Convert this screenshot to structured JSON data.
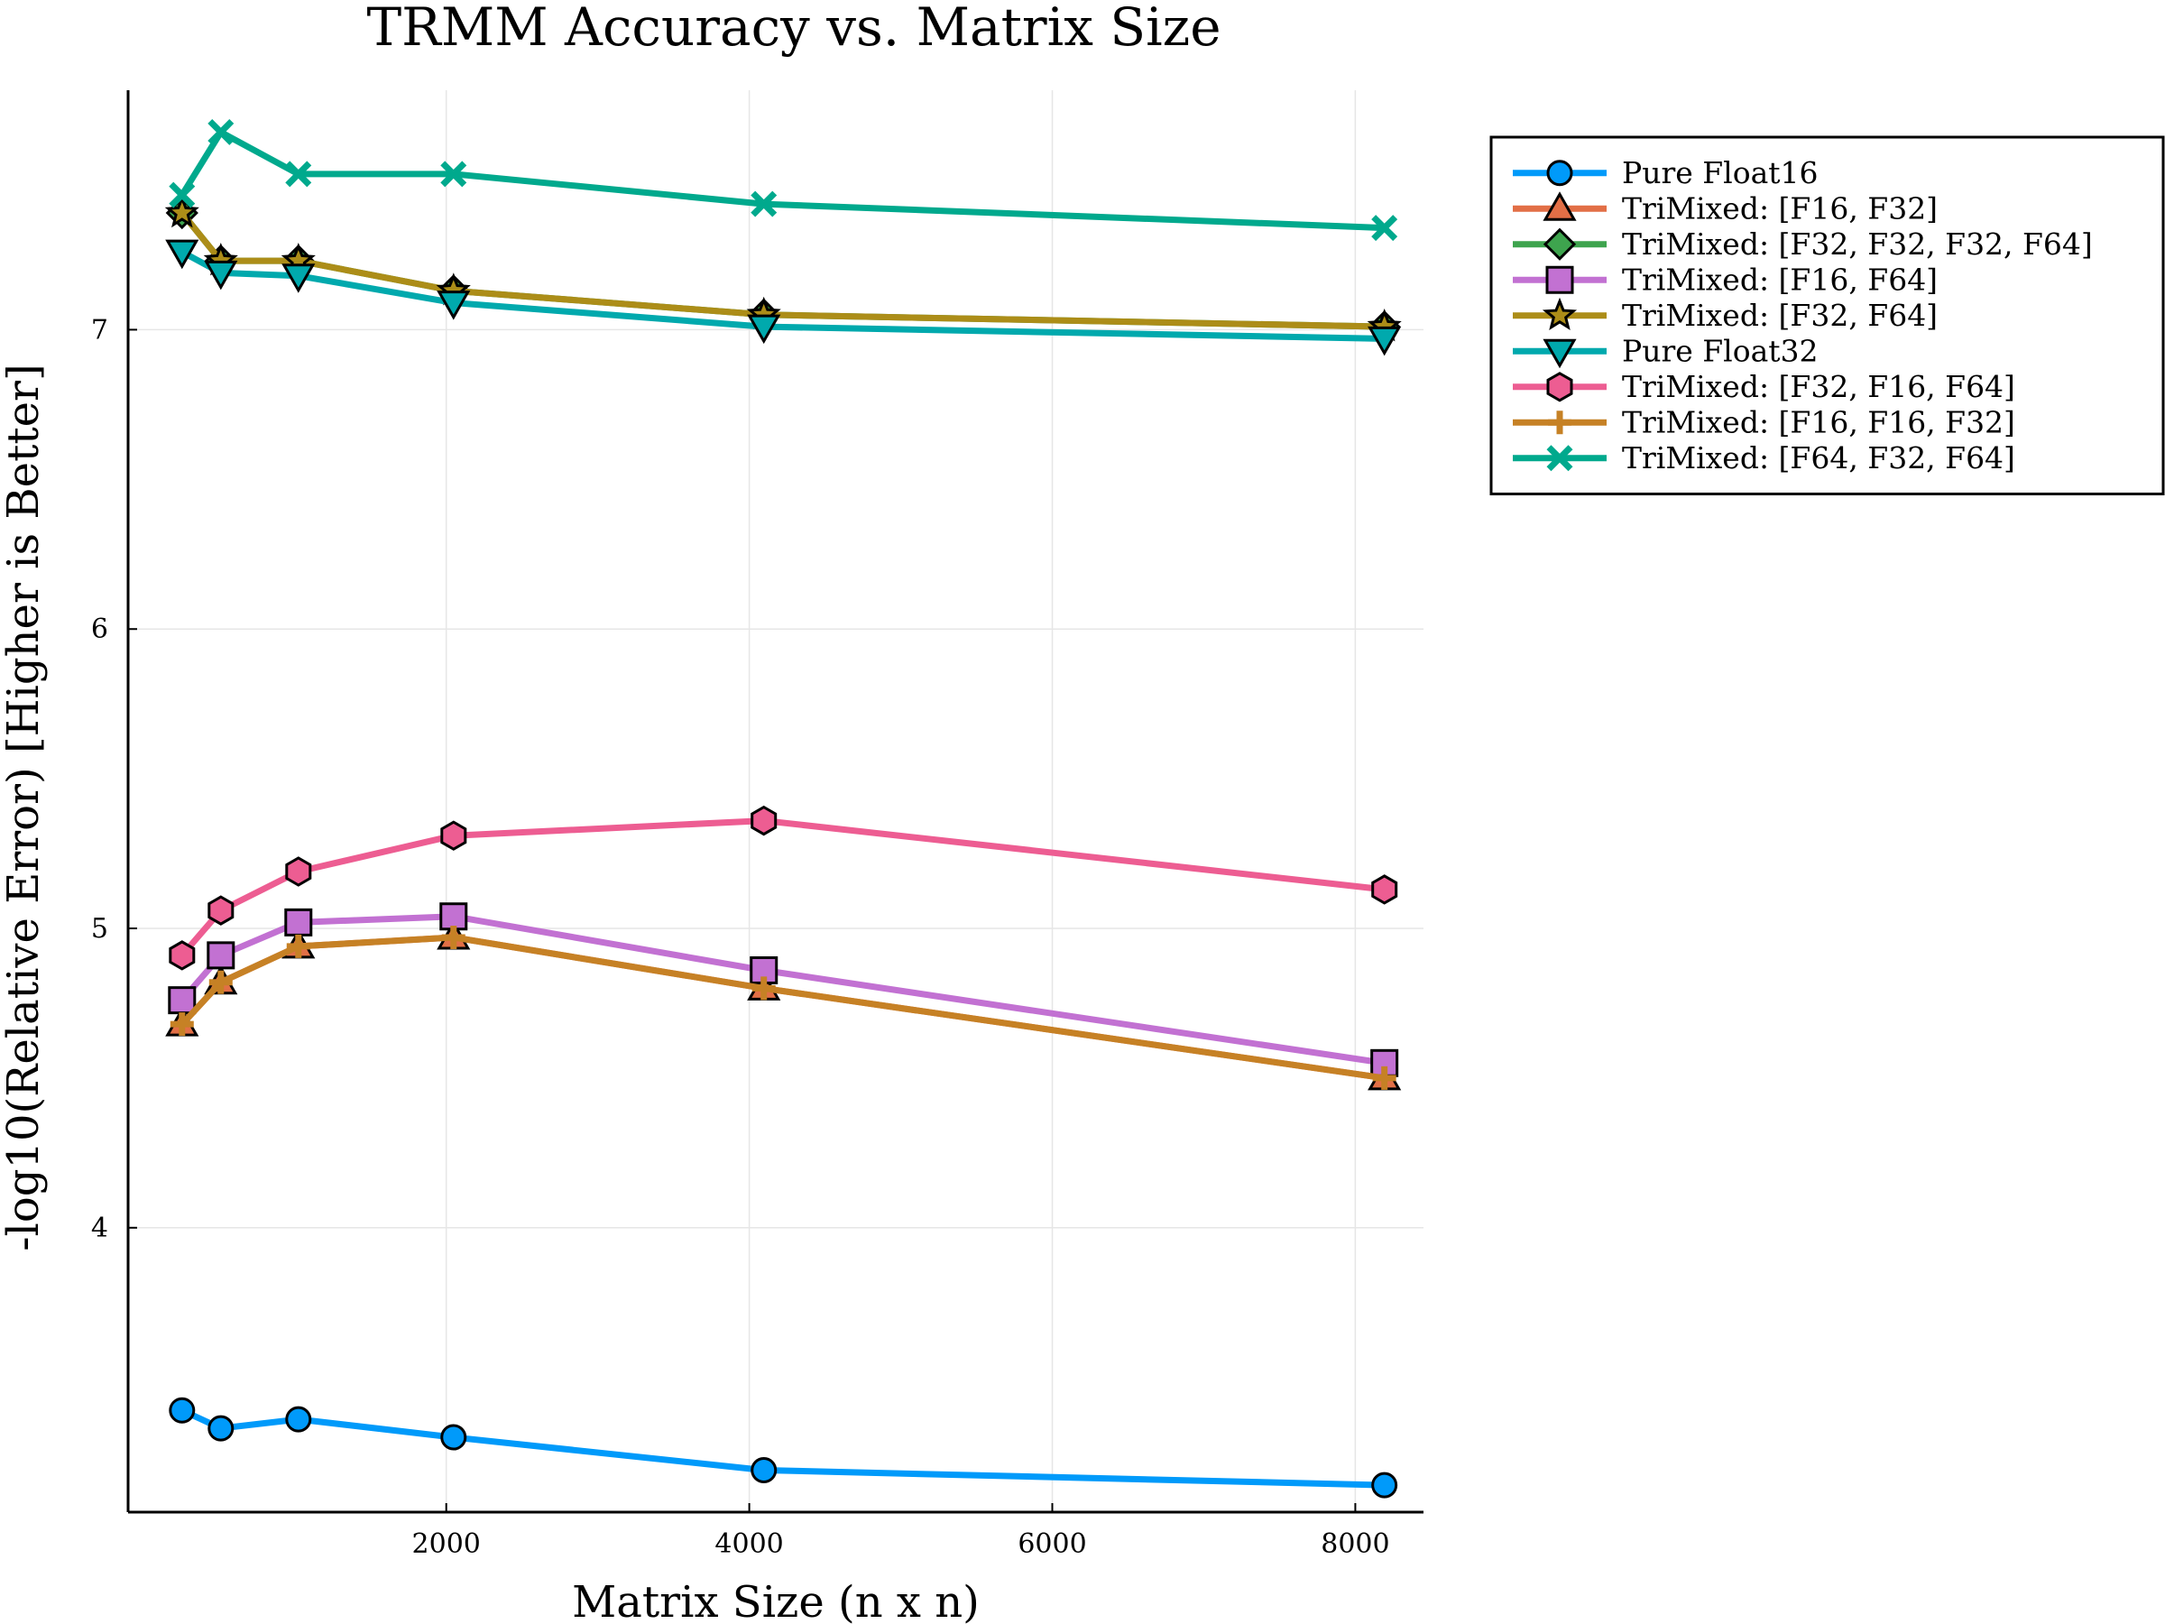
{
  "chart_data": {
    "type": "line",
    "title": "TRMM Accuracy vs. Matrix Size",
    "xlabel": "Matrix Size (n x n)",
    "ylabel": "-log10(Relative Error) [Higher is Better]",
    "xlim": [
      -100,
      8450
    ],
    "ylim": [
      3.05,
      7.8
    ],
    "xticks": [
      2000,
      4000,
      6000,
      8000
    ],
    "xtick_labels": [
      "2000",
      "4000",
      "6000",
      "8000"
    ],
    "yticks": [
      4,
      5,
      6,
      7
    ],
    "ytick_labels": [
      "4",
      "5",
      "6",
      "7"
    ],
    "grid": true,
    "legend_position": "top-right outside",
    "x": [
      256,
      512,
      1024,
      2048,
      4096,
      8192
    ],
    "series": [
      {
        "name": "Pure Float16",
        "color": "#009AFA",
        "marker": "circle",
        "values": [
          3.39,
          3.33,
          3.36,
          3.3,
          3.19,
          3.14
        ]
      },
      {
        "name": "TriMixed: [F16, F32]",
        "color": "#E26F46",
        "marker": "triangle-up",
        "values": [
          4.68,
          4.82,
          4.94,
          4.97,
          4.8,
          4.5
        ]
      },
      {
        "name": "TriMixed: [F32, F32, F32, F64]",
        "color": "#3EA44E",
        "marker": "diamond",
        "values": [
          7.39,
          7.23,
          7.23,
          7.13,
          7.05,
          7.01
        ]
      },
      {
        "name": "TriMixed: [F16, F64]",
        "color": "#C271D2",
        "marker": "square",
        "values": [
          4.76,
          4.91,
          5.02,
          5.04,
          4.86,
          4.55
        ]
      },
      {
        "name": "TriMixed: [F32, F64]",
        "color": "#AC8D18",
        "marker": "star",
        "values": [
          7.39,
          7.23,
          7.23,
          7.13,
          7.05,
          7.01
        ]
      },
      {
        "name": "Pure Float32",
        "color": "#00A9AD",
        "marker": "triangle-down",
        "values": [
          7.26,
          7.19,
          7.18,
          7.09,
          7.01,
          6.97
        ]
      },
      {
        "name": "TriMixed: [F32, F16, F64]",
        "color": "#ED5D92",
        "marker": "hexagon",
        "values": [
          4.91,
          5.06,
          5.19,
          5.31,
          5.36,
          5.13
        ]
      },
      {
        "name": "TriMixed: [F16, F16, F32]",
        "color": "#C68125",
        "marker": "cross",
        "values": [
          4.68,
          4.82,
          4.94,
          4.97,
          4.8,
          4.5
        ]
      },
      {
        "name": "TriMixed: [F64, F32, F64]",
        "color": "#00A98D",
        "marker": "x",
        "values": [
          7.45,
          7.66,
          7.52,
          7.52,
          7.42,
          7.34
        ]
      }
    ]
  }
}
